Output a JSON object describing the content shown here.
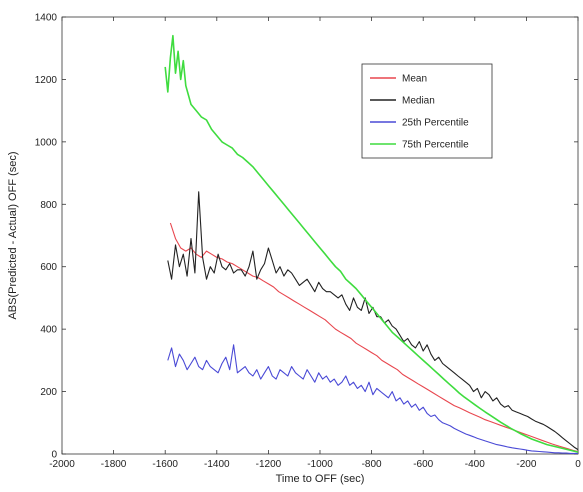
{
  "chart_data": {
    "type": "line",
    "xlabel": "Time to OFF (sec)",
    "ylabel": "ABS(Predicted - Actual) OFF (sec)",
    "xlim": [
      -2000,
      0
    ],
    "ylim": [
      0,
      1400
    ],
    "xticks": [
      -2000,
      -1800,
      -1600,
      -1400,
      -1200,
      -1000,
      -800,
      -600,
      -400,
      -200,
      0
    ],
    "yticks": [
      0,
      200,
      400,
      600,
      800,
      1000,
      1200,
      1400
    ],
    "grid": false,
    "legend_position": "top-right",
    "series": [
      {
        "name": "Mean",
        "color": "#e8474f",
        "x": [
          -1580,
          -1560,
          -1540,
          -1520,
          -1500,
          -1480,
          -1460,
          -1440,
          -1420,
          -1400,
          -1380,
          -1360,
          -1340,
          -1320,
          -1300,
          -1280,
          -1260,
          -1240,
          -1220,
          -1200,
          -1180,
          -1160,
          -1140,
          -1120,
          -1100,
          -1080,
          -1060,
          -1040,
          -1020,
          -1000,
          -980,
          -960,
          -940,
          -920,
          -900,
          -880,
          -860,
          -840,
          -820,
          -800,
          -780,
          -760,
          -740,
          -720,
          -700,
          -680,
          -660,
          -640,
          -620,
          -600,
          -580,
          -560,
          -540,
          -520,
          -500,
          -480,
          -460,
          -440,
          -420,
          -400,
          -380,
          -360,
          -340,
          -320,
          -300,
          -280,
          -260,
          -240,
          -220,
          -200,
          -180,
          -160,
          -140,
          -120,
          -100,
          -80,
          -60,
          -40,
          -20,
          0
        ],
        "y": [
          740,
          690,
          660,
          650,
          660,
          640,
          630,
          650,
          640,
          630,
          625,
          615,
          610,
          600,
          590,
          580,
          570,
          565,
          555,
          545,
          535,
          520,
          510,
          500,
          490,
          480,
          470,
          460,
          450,
          440,
          430,
          415,
          400,
          390,
          380,
          370,
          355,
          345,
          335,
          325,
          315,
          300,
          290,
          280,
          270,
          255,
          245,
          235,
          225,
          215,
          205,
          195,
          185,
          175,
          165,
          155,
          148,
          140,
          132,
          125,
          118,
          110,
          104,
          98,
          92,
          86,
          80,
          74,
          68,
          62,
          56,
          50,
          44,
          38,
          32,
          27,
          22,
          17,
          12,
          8
        ]
      },
      {
        "name": "Median",
        "color": "#222222",
        "x": [
          -1590,
          -1575,
          -1560,
          -1545,
          -1530,
          -1515,
          -1500,
          -1485,
          -1470,
          -1455,
          -1440,
          -1425,
          -1410,
          -1395,
          -1380,
          -1365,
          -1350,
          -1335,
          -1320,
          -1305,
          -1290,
          -1275,
          -1260,
          -1245,
          -1230,
          -1215,
          -1200,
          -1185,
          -1170,
          -1155,
          -1140,
          -1125,
          -1110,
          -1095,
          -1080,
          -1065,
          -1050,
          -1035,
          -1020,
          -1005,
          -990,
          -975,
          -960,
          -945,
          -930,
          -915,
          -900,
          -885,
          -870,
          -855,
          -840,
          -825,
          -810,
          -795,
          -780,
          -765,
          -750,
          -735,
          -720,
          -705,
          -690,
          -675,
          -660,
          -645,
          -630,
          -615,
          -600,
          -585,
          -570,
          -555,
          -540,
          -525,
          -510,
          -495,
          -480,
          -465,
          -450,
          -435,
          -420,
          -405,
          -390,
          -375,
          -360,
          -345,
          -330,
          -315,
          -300,
          -285,
          -270,
          -255,
          -240,
          -225,
          -210,
          -195,
          -180,
          -165,
          -150,
          -135,
          -120,
          -105,
          -90,
          -75,
          -60,
          -45,
          -30,
          -15,
          0
        ],
        "y": [
          620,
          560,
          670,
          600,
          640,
          570,
          690,
          580,
          840,
          630,
          560,
          600,
          580,
          640,
          600,
          590,
          610,
          580,
          590,
          590,
          570,
          600,
          650,
          560,
          590,
          610,
          660,
          620,
          580,
          600,
          570,
          590,
          580,
          560,
          540,
          550,
          560,
          540,
          520,
          550,
          530,
          520,
          520,
          510,
          500,
          510,
          480,
          460,
          500,
          470,
          460,
          500,
          450,
          470,
          440,
          440,
          420,
          430,
          410,
          400,
          380,
          360,
          370,
          350,
          340,
          360,
          330,
          350,
          320,
          300,
          310,
          290,
          280,
          270,
          260,
          250,
          240,
          230,
          220,
          200,
          210,
          180,
          200,
          190,
          170,
          180,
          160,
          150,
          155,
          140,
          135,
          130,
          125,
          120,
          112,
          105,
          100,
          95,
          88,
          80,
          72,
          62,
          52,
          42,
          32,
          22,
          14
        ]
      },
      {
        "name": "25th Percentile",
        "color": "#4a4ad6",
        "x": [
          -1590,
          -1575,
          -1560,
          -1545,
          -1530,
          -1515,
          -1500,
          -1485,
          -1470,
          -1455,
          -1440,
          -1425,
          -1410,
          -1395,
          -1380,
          -1365,
          -1350,
          -1335,
          -1320,
          -1305,
          -1290,
          -1275,
          -1260,
          -1245,
          -1230,
          -1215,
          -1200,
          -1185,
          -1170,
          -1155,
          -1140,
          -1125,
          -1110,
          -1095,
          -1080,
          -1065,
          -1050,
          -1035,
          -1020,
          -1005,
          -990,
          -975,
          -960,
          -945,
          -930,
          -915,
          -900,
          -885,
          -870,
          -855,
          -840,
          -825,
          -810,
          -795,
          -780,
          -765,
          -750,
          -735,
          -720,
          -705,
          -690,
          -675,
          -660,
          -645,
          -630,
          -615,
          -600,
          -585,
          -570,
          -555,
          -540,
          -525,
          -510,
          -495,
          -480,
          -465,
          -450,
          -435,
          -420,
          -405,
          -390,
          -375,
          -360,
          -345,
          -330,
          -315,
          -300,
          -285,
          -270,
          -255,
          -240,
          -225,
          -210,
          -195,
          -180,
          -165,
          -150,
          -135,
          -120,
          -105,
          -90,
          -75,
          -60,
          -45,
          -30,
          -15,
          0
        ],
        "y": [
          300,
          340,
          280,
          320,
          300,
          270,
          290,
          310,
          280,
          270,
          300,
          280,
          270,
          260,
          290,
          310,
          270,
          350,
          260,
          270,
          280,
          260,
          250,
          270,
          240,
          260,
          280,
          250,
          240,
          270,
          260,
          250,
          280,
          260,
          250,
          240,
          270,
          250,
          230,
          260,
          240,
          250,
          230,
          240,
          220,
          230,
          250,
          220,
          230,
          210,
          220,
          200,
          230,
          190,
          210,
          200,
          190,
          180,
          200,
          170,
          180,
          160,
          170,
          150,
          160,
          140,
          150,
          130,
          120,
          125,
          110,
          100,
          95,
          90,
          82,
          76,
          70,
          64,
          60,
          55,
          50,
          46,
          42,
          38,
          34,
          30,
          28,
          25,
          22,
          20,
          18,
          16,
          14,
          12,
          10,
          9,
          8,
          7,
          6,
          5,
          4,
          4,
          3,
          3,
          2,
          2,
          2
        ]
      },
      {
        "name": "75th Percentile",
        "color": "#3fdc3f",
        "x": [
          -1600,
          -1590,
          -1580,
          -1570,
          -1560,
          -1550,
          -1540,
          -1530,
          -1520,
          -1510,
          -1500,
          -1480,
          -1460,
          -1440,
          -1420,
          -1400,
          -1380,
          -1360,
          -1340,
          -1320,
          -1300,
          -1280,
          -1260,
          -1240,
          -1220,
          -1200,
          -1180,
          -1160,
          -1140,
          -1120,
          -1100,
          -1080,
          -1060,
          -1040,
          -1020,
          -1000,
          -980,
          -960,
          -940,
          -920,
          -900,
          -880,
          -860,
          -840,
          -820,
          -800,
          -780,
          -760,
          -740,
          -720,
          -700,
          -680,
          -660,
          -640,
          -620,
          -600,
          -580,
          -560,
          -540,
          -520,
          -500,
          -480,
          -460,
          -440,
          -420,
          -400,
          -380,
          -360,
          -340,
          -320,
          -300,
          -280,
          -260,
          -240,
          -220,
          -200,
          -180,
          -160,
          -140,
          -120,
          -100,
          -80,
          -60,
          -40,
          -20,
          0
        ],
        "y": [
          1240,
          1160,
          1270,
          1340,
          1220,
          1290,
          1200,
          1260,
          1180,
          1150,
          1120,
          1100,
          1080,
          1070,
          1040,
          1020,
          1000,
          990,
          980,
          960,
          950,
          935,
          920,
          900,
          880,
          860,
          840,
          820,
          800,
          780,
          760,
          740,
          720,
          700,
          680,
          660,
          640,
          620,
          600,
          585,
          560,
          545,
          530,
          510,
          490,
          470,
          450,
          430,
          410,
          390,
          375,
          360,
          345,
          330,
          315,
          300,
          285,
          270,
          255,
          240,
          225,
          210,
          195,
          182,
          170,
          158,
          146,
          135,
          124,
          113,
          102,
          92,
          82,
          73,
          64,
          56,
          48,
          42,
          36,
          30,
          26,
          22,
          18,
          14,
          10,
          6
        ]
      }
    ]
  }
}
